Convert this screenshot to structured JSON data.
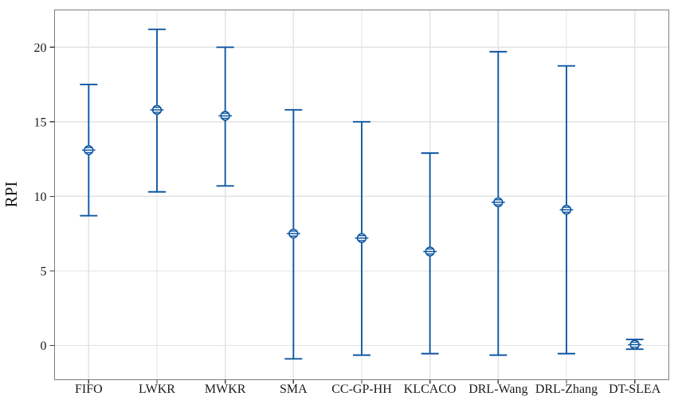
{
  "chart_data": {
    "type": "scatter",
    "subtype": "interval-plot-with-error-bars",
    "title": "",
    "xlabel": "",
    "ylabel": "RPI",
    "categories": [
      "FIFO",
      "LWKR",
      "MWKR",
      "SMA",
      "CC-GP-HH",
      "KLCACO",
      "DRL-Wang",
      "DRL-Zhang",
      "DT-SLEA"
    ],
    "series": [
      {
        "name": "RPI",
        "means": [
          13.1,
          15.8,
          15.4,
          7.5,
          7.2,
          6.3,
          9.6,
          9.1,
          0.05
        ],
        "interval_low": [
          8.7,
          10.3,
          10.7,
          -0.9,
          -0.65,
          -0.55,
          -0.65,
          -0.55,
          -0.25
        ],
        "interval_high": [
          17.5,
          21.2,
          20.0,
          15.8,
          15.0,
          12.9,
          19.7,
          18.75,
          0.4
        ]
      }
    ],
    "yticks": [
      0,
      5,
      10,
      15,
      20
    ],
    "ylim": [
      -2.3,
      22.5
    ],
    "grid": true,
    "legend": "none",
    "colors": {
      "series": "#0E57A2",
      "grid": "#E3E3E3",
      "frame": "#7F7F7F",
      "tick": "#404040",
      "text": "#1A1A1A",
      "background": "#FFFFFF"
    }
  }
}
